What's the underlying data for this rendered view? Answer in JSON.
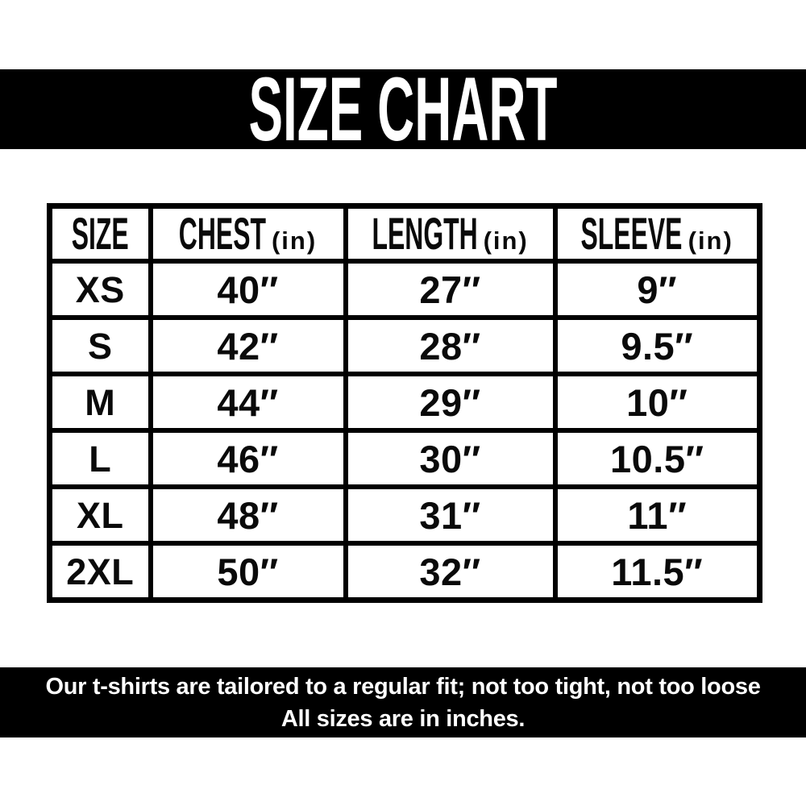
{
  "title": "SIZE CHART",
  "table": {
    "headers": [
      {
        "label": "SIZE",
        "unit": ""
      },
      {
        "label": "CHEST",
        "unit": "(in)"
      },
      {
        "label": "LENGTH",
        "unit": "(in)"
      },
      {
        "label": "SLEEVE",
        "unit": "(in)"
      }
    ],
    "rows": [
      {
        "size": "XS",
        "chest": "40″",
        "length": "27″",
        "sleeve": "9″"
      },
      {
        "size": "S",
        "chest": "42″",
        "length": "28″",
        "sleeve": "9.5″"
      },
      {
        "size": "M",
        "chest": "44″",
        "length": "29″",
        "sleeve": "10″"
      },
      {
        "size": "L",
        "chest": "46″",
        "length": "30″",
        "sleeve": "10.5″"
      },
      {
        "size": "XL",
        "chest": "48″",
        "length": "31″",
        "sleeve": "11″"
      },
      {
        "size": "2XL",
        "chest": "50″",
        "length": "32″",
        "sleeve": "11.5″"
      }
    ]
  },
  "footer": {
    "line1": "Our t-shirts are tailored to a regular fit; not too tight, not too loose",
    "line2": "All sizes are in inches."
  },
  "colors": {
    "band_background": "#000000",
    "band_text": "#ffffff",
    "table_border": "#000000",
    "table_text": "#0a0a0a",
    "page_background": "#ffffff"
  },
  "chart_data": {
    "type": "table",
    "title": "SIZE CHART",
    "columns": [
      "SIZE",
      "CHEST (in)",
      "LENGTH (in)",
      "SLEEVE (in)"
    ],
    "categories": [
      "XS",
      "S",
      "M",
      "L",
      "XL",
      "2XL"
    ],
    "series": [
      {
        "name": "Chest (in)",
        "values": [
          40,
          42,
          44,
          46,
          48,
          50
        ]
      },
      {
        "name": "Length (in)",
        "values": [
          27,
          28,
          29,
          30,
          31,
          32
        ]
      },
      {
        "name": "Sleeve (in)",
        "values": [
          9,
          9.5,
          10,
          10.5,
          11,
          11.5
        ]
      }
    ],
    "unit": "inches",
    "notes": [
      "Our t-shirts are tailored to a regular fit; not too tight, not too loose",
      "All sizes are in inches."
    ]
  }
}
